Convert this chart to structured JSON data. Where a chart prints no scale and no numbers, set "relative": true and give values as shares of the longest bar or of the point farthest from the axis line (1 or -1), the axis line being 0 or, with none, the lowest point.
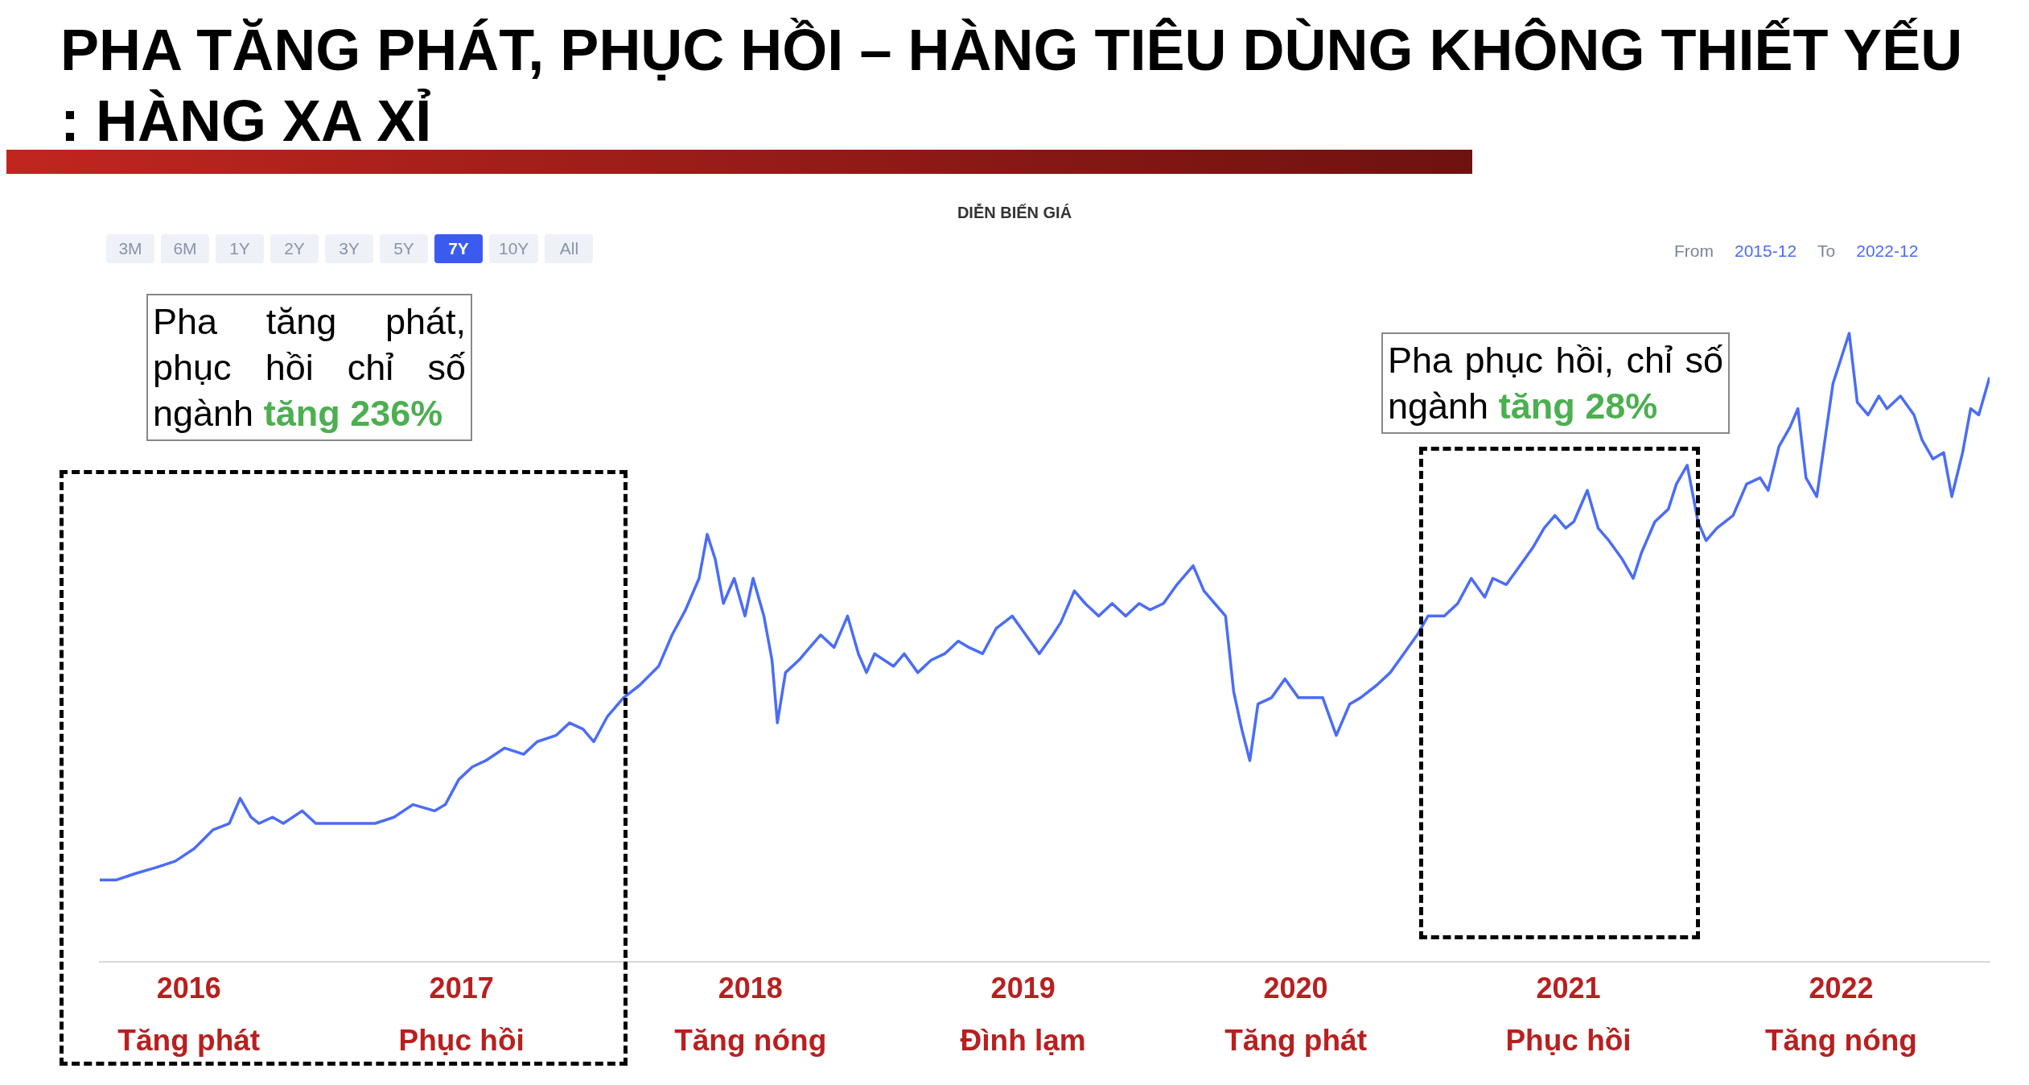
{
  "chart_data": {
    "type": "line",
    "title": "PHA TĂNG PHÁT, PHỤC HỒI – HÀNG TIÊU DÙNG KHÔNG THIẾT YẾU : HÀNG XA XỈ",
    "subtitle": "DIỄN BIẾN GIÁ",
    "relative": true,
    "color": "#4a6cf7",
    "x": [
      2015.92,
      2015.98,
      2016.05,
      2016.13,
      2016.2,
      2016.27,
      2016.34,
      2016.4,
      2016.44,
      2016.48,
      2016.51,
      2016.56,
      2016.6,
      2016.67,
      2016.72,
      2016.8,
      2016.87,
      2016.94,
      2017.01,
      2017.08,
      2017.16,
      2017.2,
      2017.25,
      2017.3,
      2017.35,
      2017.42,
      2017.49,
      2017.54,
      2017.61,
      2017.66,
      2017.71,
      2017.75,
      2017.8,
      2017.86,
      2017.92,
      2017.99,
      2018.04,
      2018.09,
      2018.14,
      2018.17,
      2018.2,
      2018.23,
      2018.27,
      2018.31,
      2018.34,
      2018.38,
      2018.41,
      2018.43,
      2018.46,
      2018.51,
      2018.55,
      2018.59,
      2018.64,
      2018.69,
      2018.73,
      2018.76,
      2018.79,
      2018.86,
      2018.9,
      2018.95,
      2019.0,
      2019.05,
      2019.1,
      2019.14,
      2019.19,
      2019.24,
      2019.3,
      2019.35,
      2019.4,
      2019.45,
      2019.48,
      2019.53,
      2019.57,
      2019.62,
      2019.67,
      2019.72,
      2019.77,
      2019.81,
      2019.86,
      2019.91,
      2019.97,
      2020.01,
      2020.05,
      2020.09,
      2020.12,
      2020.15,
      2020.18,
      2020.21,
      2020.26,
      2020.31,
      2020.36,
      2020.4,
      2020.45,
      2020.5,
      2020.55,
      2020.59,
      2020.65,
      2020.7,
      2020.75,
      2020.8,
      2020.84,
      2020.9,
      2020.95,
      2021.0,
      2021.05,
      2021.08,
      2021.13,
      2021.18,
      2021.23,
      2021.27,
      2021.31,
      2021.35,
      2021.38,
      2021.43,
      2021.47,
      2021.51,
      2021.56,
      2021.6,
      2021.63,
      2021.68,
      2021.73,
      2021.76,
      2021.8,
      2021.84,
      2021.87,
      2021.91,
      2021.97,
      2022.02,
      2022.07,
      2022.1,
      2022.14,
      2022.18,
      2022.21,
      2022.24,
      2022.28,
      2022.31,
      2022.34,
      2022.37,
      2022.4,
      2022.43,
      2022.47,
      2022.51,
      2022.54,
      2022.59,
      2022.64,
      2022.67,
      2022.71,
      2022.75,
      2022.78,
      2022.82,
      2022.85,
      2022.88,
      2022.92
    ],
    "values": [
      0.13,
      0.13,
      0.14,
      0.15,
      0.16,
      0.18,
      0.21,
      0.22,
      0.26,
      0.23,
      0.22,
      0.23,
      0.22,
      0.24,
      0.22,
      0.22,
      0.22,
      0.22,
      0.23,
      0.25,
      0.24,
      0.25,
      0.29,
      0.31,
      0.32,
      0.34,
      0.33,
      0.35,
      0.36,
      0.38,
      0.37,
      0.35,
      0.39,
      0.42,
      0.44,
      0.47,
      0.52,
      0.56,
      0.61,
      0.68,
      0.64,
      0.57,
      0.61,
      0.55,
      0.61,
      0.55,
      0.48,
      0.38,
      0.46,
      0.48,
      0.5,
      0.52,
      0.5,
      0.55,
      0.49,
      0.46,
      0.49,
      0.47,
      0.49,
      0.46,
      0.48,
      0.49,
      0.51,
      0.5,
      0.49,
      0.53,
      0.55,
      0.52,
      0.49,
      0.52,
      0.54,
      0.59,
      0.57,
      0.55,
      0.57,
      0.55,
      0.57,
      0.56,
      0.57,
      0.6,
      0.63,
      0.59,
      0.57,
      0.55,
      0.43,
      0.37,
      0.32,
      0.41,
      0.42,
      0.45,
      0.42,
      0.42,
      0.42,
      0.36,
      0.41,
      0.42,
      0.44,
      0.46,
      0.49,
      0.52,
      0.55,
      0.55,
      0.57,
      0.61,
      0.58,
      0.61,
      0.6,
      0.63,
      0.66,
      0.69,
      0.71,
      0.69,
      0.7,
      0.75,
      0.69,
      0.67,
      0.64,
      0.61,
      0.65,
      0.7,
      0.72,
      0.76,
      0.79,
      0.7,
      0.67,
      0.69,
      0.71,
      0.76,
      0.77,
      0.75,
      0.82,
      0.85,
      0.88,
      0.77,
      0.74,
      0.83,
      0.92,
      0.96,
      1.0,
      0.89,
      0.87,
      0.9,
      0.88,
      0.9,
      0.87,
      0.83,
      0.8,
      0.81,
      0.74,
      0.81,
      0.88,
      0.87,
      0.93
    ],
    "xlim": [
      2015.92,
      2022.92
    ],
    "xticks": [
      {
        "value": 2016.25,
        "label": "2016"
      },
      {
        "value": 2017.26,
        "label": "2017"
      },
      {
        "value": 2018.33,
        "label": "2018"
      },
      {
        "value": 2019.34,
        "label": "2019"
      },
      {
        "value": 2020.35,
        "label": "2020"
      },
      {
        "value": 2021.36,
        "label": "2021"
      },
      {
        "value": 2022.37,
        "label": "2022"
      }
    ],
    "annotations": [
      "Pha tăng phát, phục hồi chỉ số ngành",
      "tăng 236%",
      "Pha phục hồi, chỉ số ngành",
      "tăng 28%",
      "3M",
      "6M",
      "1Y",
      "2Y",
      "3Y",
      "5Y",
      "7Y",
      "10Y",
      "All",
      "From",
      "2015-12",
      "To",
      "2022-12",
      "Tăng phát",
      "Phục hồi",
      "Tăng nóng",
      "Đình lạm",
      "Tăng phát",
      "Phục hồi",
      "Tăng nóng"
    ]
  }
}
